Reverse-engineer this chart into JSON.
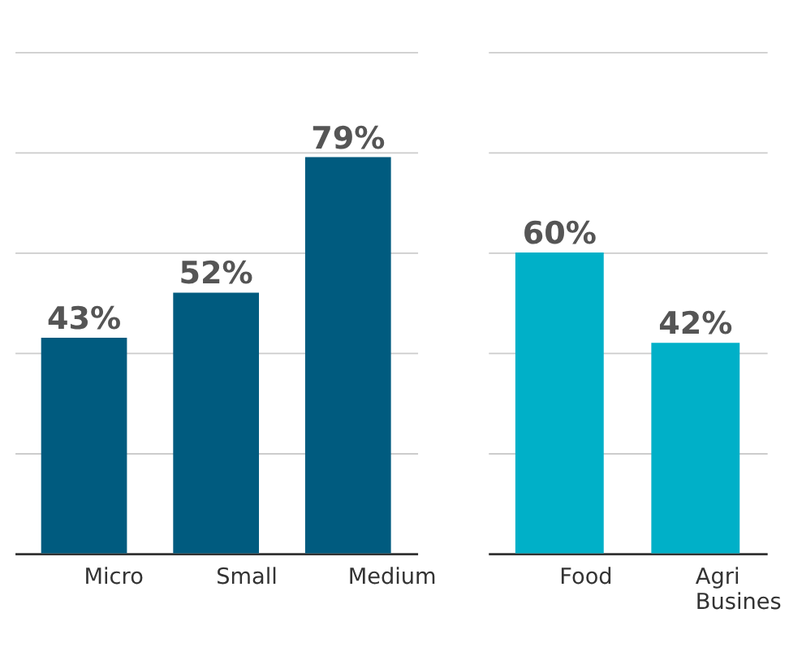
{
  "chart_data": [
    {
      "type": "bar",
      "categories": [
        "Micro",
        "Small",
        "Medium"
      ],
      "values": [
        43,
        52,
        79
      ],
      "color": "#005b7f",
      "ylim": [
        0,
        100
      ],
      "yticks": [
        {
          "value": 0,
          "label": null
        },
        {
          "value": 20,
          "label": null
        },
        {
          "value": 40,
          "label": null
        },
        {
          "value": 60,
          "label": null
        },
        {
          "value": 80,
          "label": null
        },
        {
          "value": 100,
          "label": null
        }
      ],
      "grid": "y",
      "tick_labels": "x",
      "value_labels": [
        "43%",
        "52%",
        "79%"
      ]
    },
    {
      "type": "bar",
      "categories": [
        "Food",
        "Agri Busines"
      ],
      "values": [
        60,
        42
      ],
      "color": "#00b0c8",
      "ylim": [
        0,
        100
      ],
      "yticks": [
        {
          "value": 0,
          "label": null
        },
        {
          "value": 20,
          "label": null
        },
        {
          "value": 40,
          "label": null
        },
        {
          "value": 60,
          "label": null
        },
        {
          "value": 80,
          "label": null
        },
        {
          "value": 100,
          "label": null
        }
      ],
      "grid": "y",
      "tick_labels": "x",
      "value_labels": [
        "60%",
        "42%"
      ]
    }
  ]
}
